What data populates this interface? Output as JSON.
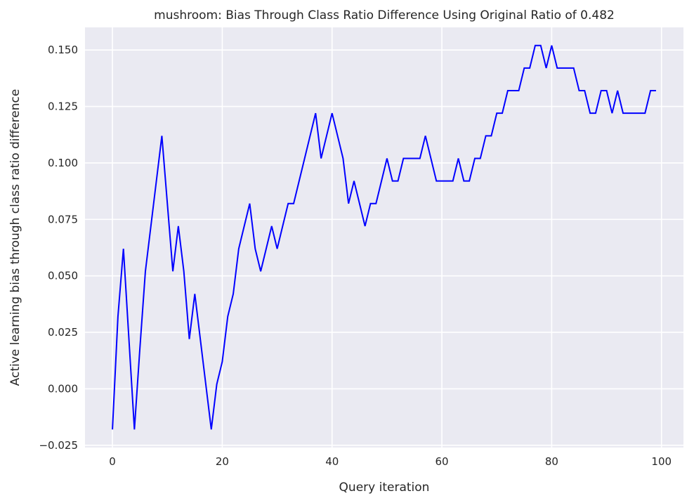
{
  "chart_data": {
    "type": "line",
    "title": "mushroom: Bias Through Class Ratio Difference Using Original Ratio of 0.482",
    "xlabel": "Query iteration",
    "ylabel": "Active learning bias through class ratio difference",
    "xlim": [
      -5,
      104
    ],
    "ylim": [
      -0.026,
      0.16
    ],
    "xticks": [
      0,
      20,
      40,
      60,
      80,
      100
    ],
    "xtick_labels": [
      "0",
      "20",
      "40",
      "60",
      "80",
      "100"
    ],
    "yticks": [
      -0.025,
      0.0,
      0.025,
      0.05,
      0.075,
      0.1,
      0.125,
      0.15
    ],
    "ytick_labels": [
      "−0.025",
      "0.000",
      "0.025",
      "0.050",
      "0.075",
      "0.100",
      "0.125",
      "0.150"
    ],
    "grid": true,
    "background_color": "#eaeaf2",
    "grid_color": "#ffffff",
    "series": [
      {
        "color": "#0000ff",
        "x": [
          0,
          1,
          2,
          3,
          4,
          5,
          6,
          7,
          8,
          9,
          10,
          11,
          12,
          13,
          14,
          15,
          16,
          17,
          18,
          19,
          20,
          21,
          22,
          23,
          24,
          25,
          26,
          27,
          28,
          29,
          30,
          31,
          32,
          33,
          34,
          35,
          36,
          37,
          38,
          39,
          40,
          41,
          42,
          43,
          44,
          45,
          46,
          47,
          48,
          49,
          50,
          51,
          52,
          53,
          54,
          55,
          56,
          57,
          58,
          59,
          60,
          61,
          62,
          63,
          64,
          65,
          66,
          67,
          68,
          69,
          70,
          71,
          72,
          73,
          74,
          75,
          76,
          77,
          78,
          79,
          80,
          81,
          82,
          83,
          84,
          85,
          86,
          87,
          88,
          89,
          90,
          91,
          92,
          93,
          94,
          95,
          96,
          97,
          98,
          99
        ],
        "values": [
          -0.018,
          0.032,
          0.062,
          0.022,
          -0.018,
          0.018,
          0.052,
          0.072,
          0.092,
          0.112,
          0.082,
          0.052,
          0.072,
          0.052,
          0.022,
          0.042,
          0.022,
          0.002,
          -0.018,
          0.002,
          0.012,
          0.032,
          0.042,
          0.062,
          0.072,
          0.082,
          0.062,
          0.052,
          0.062,
          0.072,
          0.062,
          0.072,
          0.082,
          0.082,
          0.092,
          0.102,
          0.112,
          0.122,
          0.102,
          0.112,
          0.122,
          0.112,
          0.102,
          0.082,
          0.092,
          0.082,
          0.072,
          0.082,
          0.082,
          0.092,
          0.102,
          0.092,
          0.092,
          0.102,
          0.102,
          0.102,
          0.102,
          0.112,
          0.102,
          0.092,
          0.092,
          0.092,
          0.092,
          0.102,
          0.092,
          0.092,
          0.102,
          0.102,
          0.112,
          0.112,
          0.122,
          0.122,
          0.132,
          0.132,
          0.132,
          0.142,
          0.142,
          0.152,
          0.152,
          0.142,
          0.152,
          0.142,
          0.142,
          0.142,
          0.142,
          0.132,
          0.132,
          0.122,
          0.122,
          0.132,
          0.132,
          0.122,
          0.132,
          0.122,
          0.122,
          0.122,
          0.122,
          0.122,
          0.132,
          0.132
        ]
      }
    ]
  }
}
